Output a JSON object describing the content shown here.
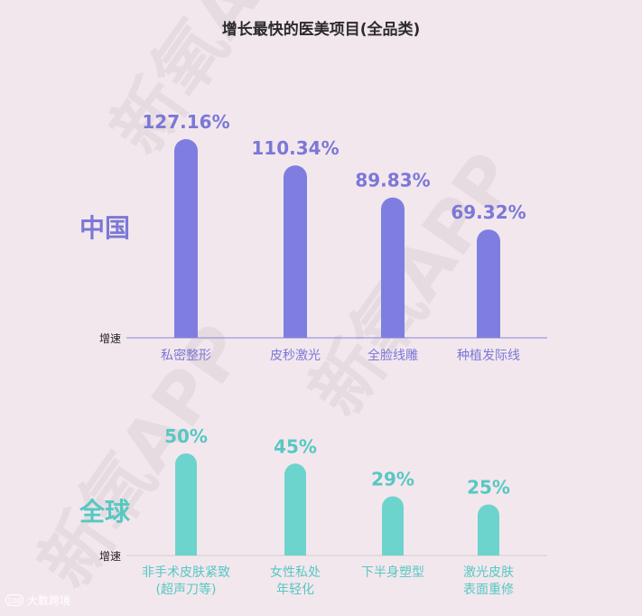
{
  "title": "增长最快的医美项目(全品类)",
  "axis_label": "增速",
  "watermark": "新氧APP",
  "footer": {
    "brand": "大数跨境"
  },
  "colors": {
    "china_bar": "#7f7ee0",
    "china_text": "#7b78d6",
    "global_bar": "#6dd3cd",
    "global_text": "#56c8c2",
    "axis_china": "#8a86d8",
    "axis_global": "#cfcfcf",
    "tick_text": "#222222"
  },
  "chart_data": [
    {
      "type": "bar",
      "region_label": "中国",
      "categories": [
        "私密整形",
        "皮秒激光",
        "全脸线雕",
        "种植发际线"
      ],
      "values": [
        127.16,
        110.34,
        89.83,
        69.32
      ],
      "value_labels": [
        "127.16%",
        "110.34%",
        "89.83%",
        "69.32%"
      ],
      "ylabel": "增速",
      "ylim": [
        0,
        140
      ]
    },
    {
      "type": "bar",
      "region_label": "全球",
      "categories": [
        "非手术皮肤紧致\n(超声刀等)",
        "女性私处\n年轻化",
        "下半身塑型",
        "激光皮肤\n表面重修"
      ],
      "values": [
        50,
        45,
        29,
        25
      ],
      "value_labels": [
        "50%",
        "45%",
        "29%",
        "25%"
      ],
      "ylabel": "增速",
      "ylim": [
        0,
        60
      ]
    }
  ]
}
